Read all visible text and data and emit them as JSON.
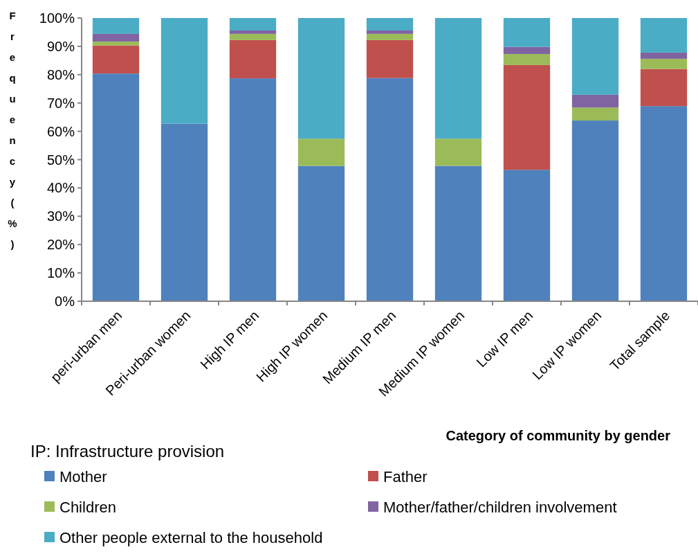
{
  "chart_data": {
    "type": "bar",
    "stacked": true,
    "xlabel": "Category of community by gender",
    "ylabel": "Frequency (%)",
    "categories": [
      "peri-urban men",
      "Peri-urban women",
      "High IP men",
      "High IP women",
      "Medium IP men",
      "Medium IP women",
      "Low IP men",
      "Low IP women",
      "Total sample"
    ],
    "series": [
      {
        "name": "Mother",
        "color": "#4f81bd",
        "values": [
          80.4,
          62.7,
          78.7,
          47.8,
          78.8,
          47.8,
          46.4,
          63.8,
          68.9
        ]
      },
      {
        "name": "Father",
        "color": "#c0504d",
        "values": [
          9.9,
          0,
          13.5,
          0,
          13.4,
          0,
          37.0,
          0,
          13.1
        ]
      },
      {
        "name": "Children",
        "color": "#9bbb59",
        "values": [
          1.4,
          0,
          2.2,
          9.6,
          2.2,
          9.6,
          3.9,
          4.6,
          3.6
        ]
      },
      {
        "name": "Mother/father/children involvement",
        "color": "#8064a2",
        "values": [
          2.7,
          0,
          1.2,
          0,
          1.2,
          0,
          2.5,
          4.5,
          2.2
        ]
      },
      {
        "name": "Other people external to the household",
        "color": "#4bacc6",
        "values": [
          5.6,
          37.3,
          4.4,
          42.6,
          4.4,
          42.6,
          10.2,
          27.1,
          12.2
        ]
      }
    ],
    "ylim": [
      0,
      100
    ],
    "yticks": [
      {
        "value": 0,
        "label": "0%"
      },
      {
        "value": 10,
        "label": "10%"
      },
      {
        "value": 20,
        "label": "20%"
      },
      {
        "value": 30,
        "label": "30%"
      },
      {
        "value": 40,
        "label": "40%"
      },
      {
        "value": 50,
        "label": "50%"
      },
      {
        "value": 60,
        "label": "60%"
      },
      {
        "value": 70,
        "label": "70%"
      },
      {
        "value": 80,
        "label": "80%"
      },
      {
        "value": 90,
        "label": "90%"
      },
      {
        "value": 100,
        "label": "100%"
      }
    ],
    "annotations": [
      "IP: Infrastructure provision"
    ],
    "legend": "bottom",
    "grid": false
  }
}
